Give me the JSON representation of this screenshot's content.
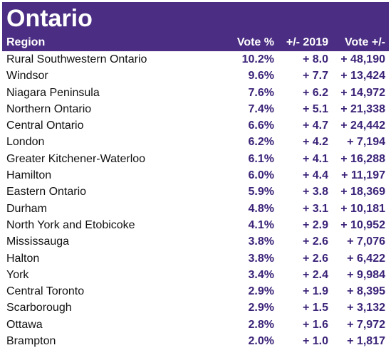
{
  "title": "Ontario",
  "headers": {
    "region": "Region",
    "vote_pct": "Vote %",
    "change": "+/- 2019",
    "votes_change": "Vote +/-"
  },
  "colors": {
    "header_bg": "#4b2e83",
    "value_text": "#3b2378"
  },
  "rows": [
    {
      "region": "Rural Southwestern Ontario",
      "vote_pct": "10.2%",
      "change": "+ 8.0",
      "votes_change": "+ 48,190"
    },
    {
      "region": "Windsor",
      "vote_pct": "9.6%",
      "change": "+ 7.7",
      "votes_change": "+ 13,424"
    },
    {
      "region": "Niagara Peninsula",
      "vote_pct": "7.6%",
      "change": "+ 6.2",
      "votes_change": "+ 14,972"
    },
    {
      "region": "Northern Ontario",
      "vote_pct": "7.4%",
      "change": "+ 5.1",
      "votes_change": "+ 21,338"
    },
    {
      "region": "Central Ontario",
      "vote_pct": "6.6%",
      "change": "+ 4.7",
      "votes_change": "+ 24,442"
    },
    {
      "region": "London",
      "vote_pct": "6.2%",
      "change": "+ 4.2",
      "votes_change": "+ 7,194"
    },
    {
      "region": "Greater Kitchener-Waterloo",
      "vote_pct": "6.1%",
      "change": "+ 4.1",
      "votes_change": "+ 16,288"
    },
    {
      "region": "Hamilton",
      "vote_pct": "6.0%",
      "change": "+ 4.4",
      "votes_change": "+ 11,197"
    },
    {
      "region": "Eastern Ontario",
      "vote_pct": "5.9%",
      "change": "+ 3.8",
      "votes_change": "+ 18,369"
    },
    {
      "region": "Durham",
      "vote_pct": "4.8%",
      "change": "+ 3.1",
      "votes_change": "+ 10,181"
    },
    {
      "region": "North York and Etobicoke",
      "vote_pct": "4.1%",
      "change": "+ 2.9",
      "votes_change": "+ 10,952"
    },
    {
      "region": "Mississauga",
      "vote_pct": "3.8%",
      "change": "+ 2.6",
      "votes_change": "+ 7,076"
    },
    {
      "region": "Halton",
      "vote_pct": "3.8%",
      "change": "+ 2.6",
      "votes_change": "+ 6,422"
    },
    {
      "region": "York",
      "vote_pct": "3.4%",
      "change": "+ 2.4",
      "votes_change": "+ 9,984"
    },
    {
      "region": "Central Toronto",
      "vote_pct": "2.9%",
      "change": "+ 1.9",
      "votes_change": "+ 8,395"
    },
    {
      "region": "Scarborough",
      "vote_pct": "2.9%",
      "change": "+ 1.5",
      "votes_change": "+ 3,132"
    },
    {
      "region": "Ottawa",
      "vote_pct": "2.8%",
      "change": "+ 1.6",
      "votes_change": "+ 7,972"
    },
    {
      "region": "Brampton",
      "vote_pct": "2.0%",
      "change": "+ 1.0",
      "votes_change": "+ 1,817"
    }
  ]
}
